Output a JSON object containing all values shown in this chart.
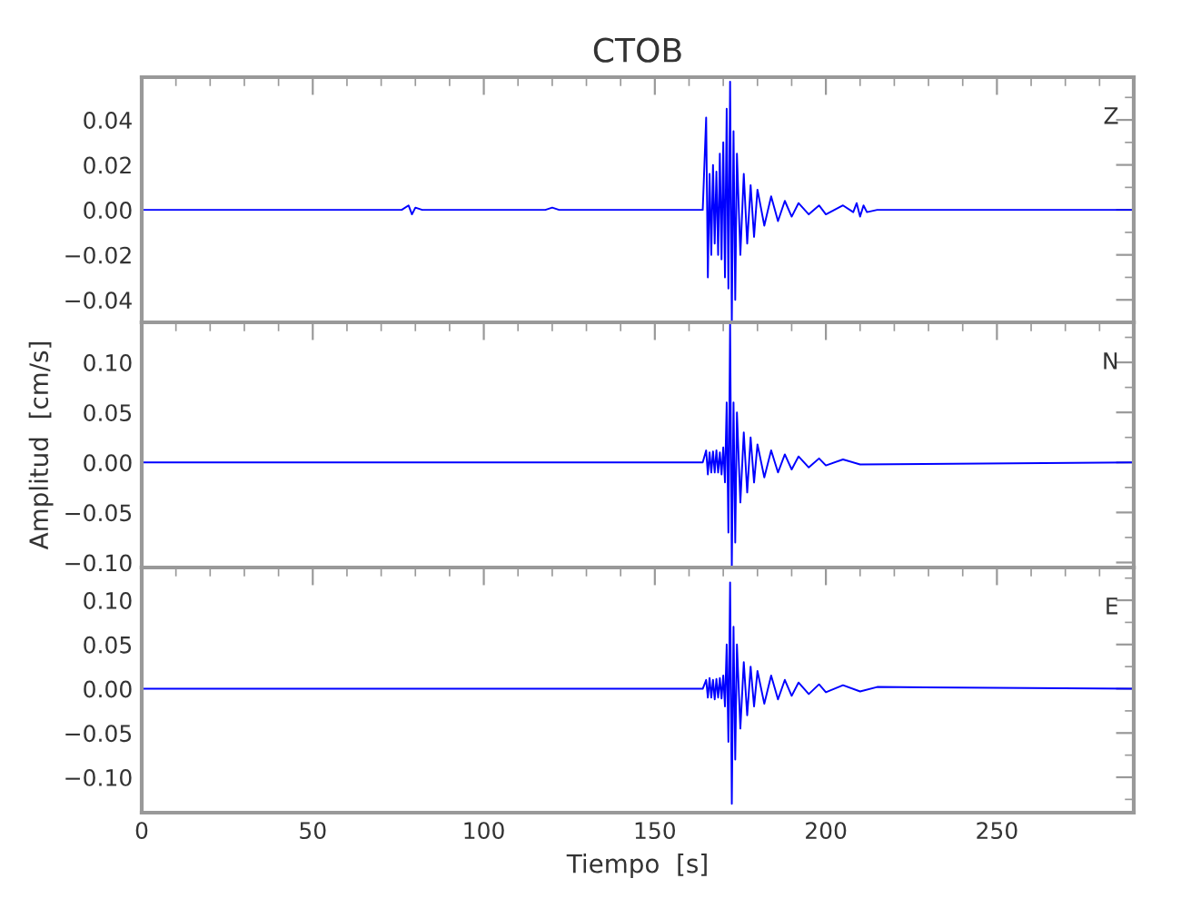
{
  "chart_data": [
    {
      "type": "line",
      "title": "CTOB",
      "annotations": [
        "Z"
      ],
      "tick_labels": "y",
      "grid": false,
      "xlim": [
        0,
        290
      ],
      "xticks": [
        0,
        50,
        100,
        150,
        200,
        250
      ],
      "ylim": [
        -0.05,
        0.059
      ],
      "yticks": [
        {
          "value": -0.04,
          "label": "−0.04"
        },
        {
          "value": -0.02,
          "label": "−0.02"
        },
        {
          "value": 0,
          "label": "0.00"
        },
        {
          "value": 0.02,
          "label": "0.02"
        },
        {
          "value": 0.04,
          "label": "0.04"
        }
      ],
      "series": [
        {
          "color": "#0000ff",
          "x": [
            0,
            76,
            78,
            79,
            80,
            82,
            118,
            120,
            122,
            164,
            165,
            165.5,
            166,
            166.5,
            167,
            167.5,
            168,
            168.5,
            169,
            169.5,
            170,
            170.5,
            171,
            171.5,
            172,
            172.5,
            173,
            173.5,
            174,
            175,
            176,
            177,
            178,
            179,
            180,
            182,
            184,
            186,
            188,
            190,
            192,
            195,
            198,
            200,
            205,
            208,
            209,
            210,
            211,
            212,
            215,
            290
          ],
          "values": [
            0,
            0,
            0.002,
            -0.002,
            0.001,
            0,
            0,
            0.001,
            0,
            0,
            0.041,
            -0.03,
            0.016,
            -0.02,
            0.02,
            -0.015,
            0.017,
            -0.02,
            0.025,
            -0.022,
            0.03,
            -0.03,
            0.045,
            -0.035,
            0.057,
            -0.05,
            0.035,
            -0.04,
            0.025,
            -0.02,
            0.016,
            -0.015,
            0.011,
            -0.012,
            0.009,
            -0.007,
            0.006,
            -0.005,
            0.004,
            -0.003,
            0.003,
            -0.002,
            0.002,
            -0.002,
            0.002,
            -0.001,
            0.003,
            -0.003,
            0.002,
            -0.001,
            0,
            0
          ]
        }
      ]
    },
    {
      "type": "line",
      "ylabel": "Amplitud  [cm/s]",
      "annotations": [
        "N"
      ],
      "tick_labels": "y",
      "grid": false,
      "xlim": [
        0,
        290
      ],
      "xticks": [
        0,
        50,
        100,
        150,
        200,
        250
      ],
      "ylim": [
        -0.105,
        0.14
      ],
      "yticks": [
        {
          "value": -0.1,
          "label": "−0.10"
        },
        {
          "value": -0.05,
          "label": "−0.05"
        },
        {
          "value": 0,
          "label": "0.00"
        },
        {
          "value": 0.05,
          "label": "0.05"
        },
        {
          "value": 0.1,
          "label": "0.10"
        }
      ],
      "series": [
        {
          "color": "#0000ff",
          "x": [
            0,
            164,
            165,
            165.5,
            166,
            166.5,
            167,
            167.5,
            168,
            168.5,
            169,
            169.5,
            170,
            170.5,
            171,
            171.5,
            172,
            172.5,
            173,
            173.5,
            174,
            175,
            176,
            177,
            178,
            179,
            180,
            182,
            184,
            186,
            188,
            190,
            192,
            195,
            198,
            200,
            205,
            210,
            290
          ],
          "values": [
            0,
            0,
            0.012,
            -0.012,
            0.01,
            -0.01,
            0.011,
            -0.01,
            0.012,
            -0.01,
            0.01,
            -0.012,
            0.015,
            -0.02,
            0.06,
            -0.07,
            0.138,
            -0.105,
            0.06,
            -0.08,
            0.05,
            -0.04,
            0.03,
            -0.03,
            0.025,
            -0.02,
            0.018,
            -0.015,
            0.012,
            -0.01,
            0.008,
            -0.007,
            0.006,
            -0.005,
            0.004,
            -0.003,
            0.003,
            -0.002,
            0
          ]
        }
      ]
    },
    {
      "type": "line",
      "xlabel": "Tiempo  [s]",
      "annotations": [
        "E"
      ],
      "grid": false,
      "xlim": [
        0,
        290
      ],
      "xticks": [
        0,
        50,
        100,
        150,
        200,
        250
      ],
      "ylim": [
        -0.14,
        0.137
      ],
      "yticks": [
        {
          "value": -0.1,
          "label": "−0.10"
        },
        {
          "value": -0.05,
          "label": "−0.05"
        },
        {
          "value": 0,
          "label": "0.00"
        },
        {
          "value": 0.05,
          "label": "0.05"
        },
        {
          "value": 0.1,
          "label": "0.10"
        }
      ],
      "series": [
        {
          "color": "#0000ff",
          "x": [
            0,
            164,
            165,
            165.5,
            166,
            166.5,
            167,
            167.5,
            168,
            168.5,
            169,
            169.5,
            170,
            170.5,
            171,
            171.5,
            172,
            172.5,
            173,
            173.5,
            174,
            175,
            176,
            177,
            178,
            179,
            180,
            182,
            184,
            186,
            188,
            190,
            192,
            195,
            198,
            200,
            205,
            210,
            215,
            290
          ],
          "values": [
            0,
            0,
            0.01,
            -0.01,
            0.012,
            -0.01,
            0.01,
            -0.012,
            0.011,
            -0.01,
            0.012,
            -0.011,
            0.015,
            -0.02,
            0.05,
            -0.06,
            0.12,
            -0.13,
            0.07,
            -0.08,
            0.05,
            -0.045,
            0.03,
            -0.03,
            0.025,
            -0.02,
            0.02,
            -0.017,
            0.015,
            -0.012,
            0.01,
            -0.008,
            0.007,
            -0.006,
            0.005,
            -0.004,
            0.004,
            -0.003,
            0.002,
            0
          ]
        }
      ]
    }
  ]
}
